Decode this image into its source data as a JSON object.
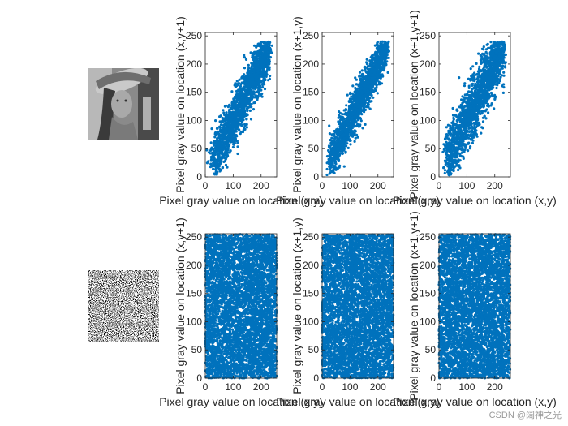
{
  "watermark": "CSDN @阔神之光",
  "images": [
    {
      "name": "plain-image",
      "description": "Lena test image"
    },
    {
      "name": "cipher-image",
      "description": "noise-like encrypted image"
    }
  ],
  "colors": {
    "points": "#0072BD",
    "axes": "#262626",
    "background": "#ffffff"
  },
  "chart_data": [
    {
      "type": "scatter",
      "row": "original",
      "direction": "vertical",
      "xlabel": "Pixel gray value on location (x,y)",
      "ylabel": "Pixel gray value on location (x,y+1)",
      "xlim": [
        0,
        256
      ],
      "ylim": [
        0,
        256
      ],
      "xticks": [
        0,
        100,
        200
      ],
      "yticks": [
        0,
        50,
        100,
        150,
        200,
        250
      ],
      "distribution": "correlated",
      "range": [
        25,
        230
      ],
      "spread": 22
    },
    {
      "type": "scatter",
      "row": "original",
      "direction": "horizontal",
      "xlabel": "Pixel gray value on location (x,y)",
      "ylabel": "Pixel gray value on location (x+1,y)",
      "xlim": [
        0,
        256
      ],
      "ylim": [
        0,
        256
      ],
      "xticks": [
        0,
        100,
        200
      ],
      "yticks": [
        0,
        50,
        100,
        150,
        200,
        250
      ],
      "distribution": "correlated",
      "range": [
        25,
        230
      ],
      "spread": 18
    },
    {
      "type": "scatter",
      "row": "original",
      "direction": "diagonal",
      "xlabel": "Pixel gray value on location (x,y)",
      "ylabel": "Pixel gray value on location (x+1,y+1)",
      "xlim": [
        0,
        256
      ],
      "ylim": [
        0,
        256
      ],
      "xticks": [
        0,
        100,
        200
      ],
      "yticks": [
        0,
        50,
        100,
        150,
        200,
        250
      ],
      "distribution": "correlated",
      "range": [
        25,
        230
      ],
      "spread": 26
    },
    {
      "type": "scatter",
      "row": "encrypted",
      "direction": "vertical",
      "xlabel": "Pixel gray value on location (x,y)",
      "ylabel": "Pixel gray value on location (x,y+1)",
      "xlim": [
        0,
        256
      ],
      "ylim": [
        0,
        256
      ],
      "xticks": [
        0,
        100,
        200
      ],
      "yticks": [
        0,
        50,
        100,
        150,
        200,
        250
      ],
      "distribution": "uniform",
      "range": [
        0,
        255
      ]
    },
    {
      "type": "scatter",
      "row": "encrypted",
      "direction": "horizontal",
      "xlabel": "Pixel gray value on location (x,y)",
      "ylabel": "Pixel gray value on location (x+1,y)",
      "xlim": [
        0,
        256
      ],
      "ylim": [
        0,
        256
      ],
      "xticks": [
        0,
        100,
        200
      ],
      "yticks": [
        0,
        50,
        100,
        150,
        200,
        250
      ],
      "distribution": "uniform",
      "range": [
        0,
        255
      ]
    },
    {
      "type": "scatter",
      "row": "encrypted",
      "direction": "diagonal",
      "xlabel": "Pixel gray value on location (x,y)",
      "ylabel": "Pixel gray value on location (x+1,y+1)",
      "xlim": [
        0,
        256
      ],
      "ylim": [
        0,
        256
      ],
      "xticks": [
        0,
        100,
        200
      ],
      "yticks": [
        0,
        50,
        100,
        150,
        200,
        250
      ],
      "distribution": "uniform",
      "range": [
        0,
        255
      ]
    }
  ]
}
